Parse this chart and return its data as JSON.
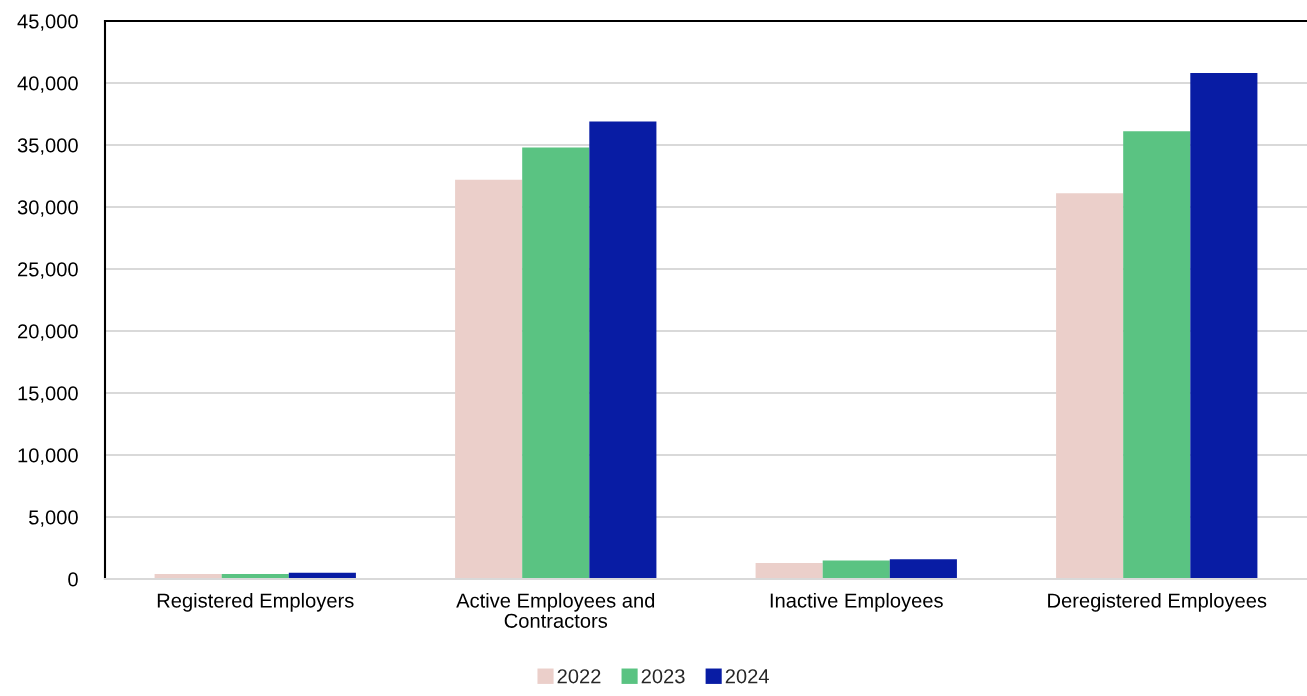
{
  "chart_data": {
    "type": "bar",
    "categories": [
      "Registered Employers",
      "Active Employees and Contractors",
      "Inactive Employees",
      "Deregistered Employees"
    ],
    "series": [
      {
        "name": "2022",
        "color": "#ebcfca",
        "values": [
          400,
          32200,
          1300,
          31100
        ]
      },
      {
        "name": "2023",
        "color": "#5ac382",
        "values": [
          400,
          34800,
          1500,
          36100
        ]
      },
      {
        "name": "2024",
        "color": "#081ca4",
        "values": [
          500,
          36900,
          1600,
          40800
        ]
      }
    ],
    "ylim": [
      0,
      45000
    ],
    "yticks": [
      0,
      {
        "value": 5000,
        "label": "5,000"
      },
      {
        "value": 10000,
        "label": "10,000"
      },
      {
        "value": 15000,
        "label": "15,000"
      },
      {
        "value": 20000,
        "label": "20,000"
      },
      {
        "value": 25000,
        "label": "25,000"
      },
      {
        "value": 30000,
        "label": "30,000"
      },
      {
        "value": 35000,
        "label": "35,000"
      },
      {
        "value": 40000,
        "label": "40,000"
      },
      {
        "value": 45000,
        "label": "45,000"
      }
    ],
    "grid": "y",
    "legend": "bottom"
  }
}
